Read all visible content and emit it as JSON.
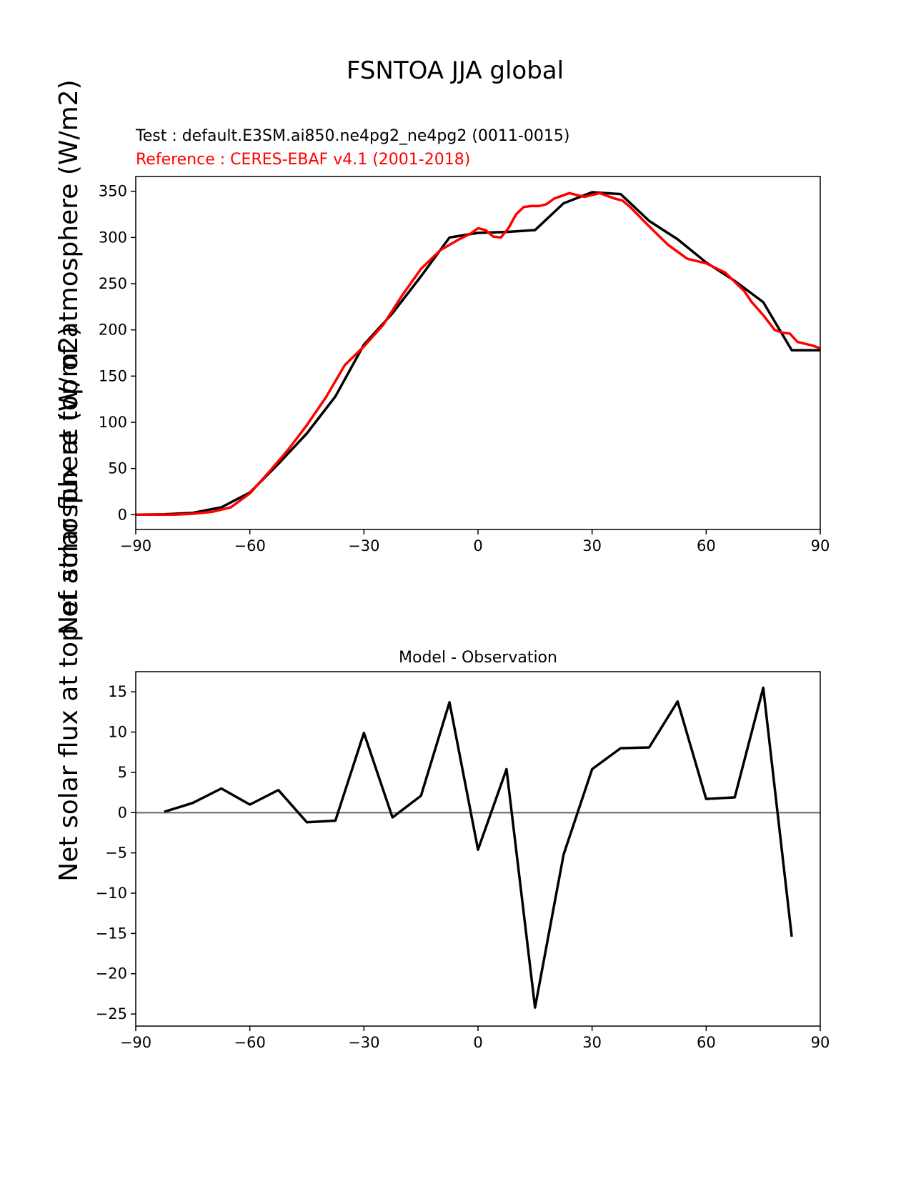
{
  "figure": {
    "title": "FSNTOA JJA global",
    "colors": {
      "test": "#000000",
      "reference": "#ff0000",
      "zero_line": "#808080",
      "axes": "#000000"
    }
  },
  "chart_data": [
    {
      "type": "line",
      "subtitle_test": "Test : default.E3SM.ai850.ne4pg2_ne4pg2 (0011-0015)",
      "subtitle_ref": "Reference : CERES-EBAF v4.1 (2001-2018)",
      "ylabel": "Net solar flux at top of atmosphere (W/m2)",
      "xlabel": "",
      "xlim": [
        -90,
        90
      ],
      "ylim": [
        -16,
        366
      ],
      "xticks": [
        -90,
        -60,
        -30,
        0,
        30,
        60,
        90
      ],
      "xtick_labels": [
        "−90",
        "−60",
        "−30",
        "0",
        "30",
        "60",
        "90"
      ],
      "yticks": [
        0,
        50,
        100,
        150,
        200,
        250,
        300,
        350
      ],
      "ytick_labels": [
        "0",
        "50",
        "100",
        "150",
        "200",
        "250",
        "300",
        "350"
      ],
      "grid": false,
      "series": [
        {
          "key": "test",
          "x": [
            -90,
            -82.5,
            -75,
            -67.5,
            -60,
            -52.5,
            -45,
            -37.5,
            -30,
            -22.5,
            -15,
            -7.5,
            0,
            7.5,
            15,
            22.5,
            30,
            37.5,
            45,
            52.5,
            60,
            67.5,
            75,
            82.5,
            90
          ],
          "y": [
            0,
            0.5,
            2,
            8,
            24,
            55,
            88,
            128,
            184,
            218,
            258,
            300,
            305,
            306,
            308,
            337,
            349,
            347,
            318,
            298,
            273,
            253,
            230,
            178,
            178
          ]
        },
        {
          "key": "reference",
          "x": [
            -90,
            -85,
            -80,
            -75,
            -70,
            -65,
            -60,
            -55,
            -50,
            -45,
            -40,
            -35,
            -30,
            -25,
            -20,
            -15,
            -10,
            -5,
            -2,
            0,
            2,
            4,
            6,
            8,
            10,
            12,
            14,
            16,
            18,
            20,
            22,
            24,
            26,
            28,
            30,
            32,
            34,
            36,
            38,
            40,
            45,
            50,
            55,
            60,
            65,
            70,
            72,
            75,
            78,
            80,
            82,
            84,
            86,
            88,
            90
          ],
          "y": [
            0,
            0,
            0,
            1,
            3,
            8,
            23,
            46,
            70,
            97,
            127,
            162,
            182,
            205,
            237,
            266,
            286,
            298,
            304,
            310,
            308,
            301,
            300,
            310,
            325,
            333,
            334,
            334,
            336,
            342,
            345,
            348,
            346,
            344,
            346,
            348,
            345,
            342,
            340,
            333,
            312,
            292,
            277,
            272,
            262,
            242,
            230,
            216,
            200,
            197,
            196,
            187,
            185,
            183,
            180
          ]
        }
      ]
    },
    {
      "type": "line",
      "title": "Model - Observation",
      "xlabel": "",
      "ylabel": "",
      "xlim": [
        -90,
        90
      ],
      "ylim": [
        -26.5,
        17.5
      ],
      "xticks": [
        -90,
        -60,
        -30,
        0,
        30,
        60,
        90
      ],
      "xtick_labels": [
        "−90",
        "−60",
        "−30",
        "0",
        "30",
        "60",
        "90"
      ],
      "yticks": [
        -25,
        -20,
        -15,
        -10,
        -5,
        0,
        5,
        10,
        15
      ],
      "ytick_labels": [
        "−25",
        "−20",
        "−15",
        "−10",
        "−5",
        "0",
        "5",
        "10",
        "15"
      ],
      "grid": false,
      "zero_line": true,
      "series": [
        {
          "key": "diff",
          "x": [
            -82.5,
            -75,
            -67.5,
            -60,
            -52.5,
            -45,
            -37.5,
            -30,
            -22.5,
            -15,
            -7.5,
            0,
            7.5,
            15,
            22.5,
            30,
            37.5,
            45,
            52.5,
            60,
            67.5,
            75,
            82.5
          ],
          "y": [
            0.1,
            1.2,
            3.0,
            1.0,
            2.8,
            -1.2,
            -1.0,
            9.9,
            -0.6,
            2.1,
            13.7,
            -4.6,
            5.4,
            -24.2,
            -5.2,
            5.4,
            8.0,
            8.1,
            13.8,
            1.7,
            1.9,
            15.5,
            -15.4
          ]
        }
      ]
    }
  ]
}
